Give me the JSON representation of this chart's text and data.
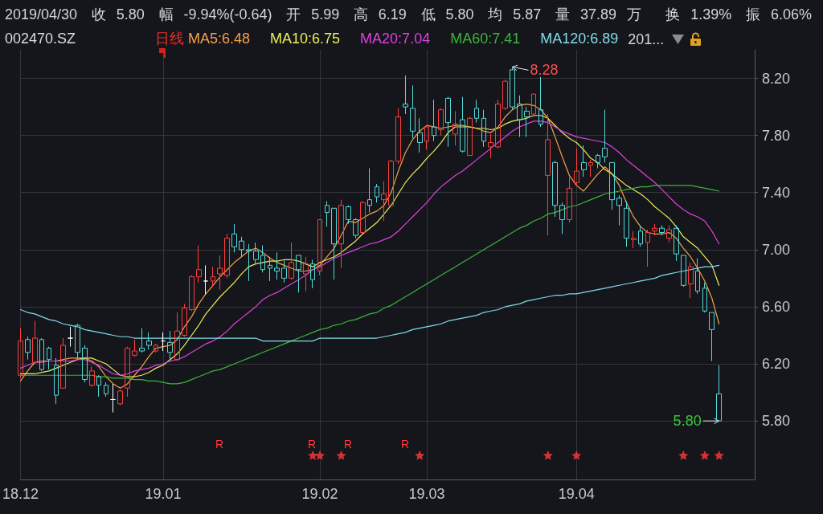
{
  "chart_data": {
    "type": "candlestick",
    "title": "2019/04/30 收5.80 幅-9.94%(-0.64) 开5.99 高6.19 低5.80 均5.87 量37.89万 换1.39% 振6.06%",
    "subtitle": "002470.SZ",
    "legend_title": "日线",
    "categories": [
      "18.12",
      null,
      null,
      null,
      null,
      null,
      null,
      null,
      null,
      null,
      null,
      null,
      null,
      null,
      null,
      null,
      null,
      null,
      null,
      null,
      "19.01",
      null,
      null,
      null,
      null,
      null,
      null,
      null,
      null,
      null,
      null,
      null,
      null,
      null,
      null,
      null,
      null,
      null,
      null,
      null,
      null,
      null,
      "19.02",
      null,
      null,
      null,
      null,
      null,
      null,
      null,
      null,
      null,
      null,
      null,
      null,
      null,
      null,
      "19.03",
      null,
      null,
      null,
      null,
      null,
      null,
      null,
      null,
      null,
      null,
      null,
      null,
      null,
      null,
      null,
      null,
      null,
      null,
      null,
      null,
      "19.04",
      null,
      null,
      null,
      null,
      null,
      null,
      null,
      null,
      null,
      null,
      null,
      null,
      null,
      null,
      null,
      null,
      null,
      null,
      null,
      null
    ],
    "ohlc": [
      [
        6.12,
        6.45,
        6.1,
        6.36
      ],
      [
        6.37,
        6.39,
        6.23,
        6.28
      ],
      [
        6.21,
        6.5,
        6.2,
        6.38
      ],
      [
        6.37,
        6.38,
        6.15,
        6.16
      ],
      [
        6.31,
        6.32,
        6.16,
        6.23
      ],
      [
        6.19,
        6.24,
        5.92,
        5.98
      ],
      [
        6.03,
        6.38,
        6.03,
        6.33
      ],
      [
        6.38,
        6.46,
        6.32,
        6.38
      ],
      [
        6.47,
        6.48,
        6.23,
        6.28
      ],
      [
        6.31,
        6.33,
        6.07,
        6.09
      ],
      [
        6.05,
        6.18,
        6.04,
        6.15
      ],
      [
        6.11,
        6.12,
        5.97,
        6.05
      ],
      [
        6.05,
        6.07,
        5.97,
        5.99
      ],
      [
        5.95,
        6.06,
        5.86,
        5.95
      ],
      [
        5.92,
        6.02,
        5.91,
        6.01
      ],
      [
        6.03,
        6.32,
        5.97,
        6.31
      ],
      [
        6.26,
        6.37,
        6.25,
        6.29
      ],
      [
        6.31,
        6.45,
        6.28,
        6.29
      ],
      [
        6.36,
        6.42,
        6.3,
        6.33
      ],
      [
        6.29,
        6.34,
        6.28,
        6.33
      ],
      [
        6.36,
        6.42,
        6.29,
        6.36
      ],
      [
        6.35,
        6.43,
        6.23,
        6.28
      ],
      [
        6.23,
        6.56,
        6.22,
        6.43
      ],
      [
        6.4,
        6.62,
        6.39,
        6.59
      ],
      [
        6.58,
        6.82,
        6.57,
        6.81
      ],
      [
        6.81,
        7.03,
        6.77,
        6.86
      ],
      [
        6.78,
        6.89,
        6.69,
        6.78
      ],
      [
        6.78,
        6.88,
        6.74,
        6.81
      ],
      [
        6.83,
        6.96,
        6.72,
        6.87
      ],
      [
        6.82,
        7.11,
        6.8,
        7.08
      ],
      [
        7.11,
        7.18,
        6.98,
        7.02
      ],
      [
        7.06,
        7.09,
        6.95,
        7.0
      ],
      [
        7.0,
        7.04,
        6.78,
        6.99
      ],
      [
        6.99,
        7.05,
        6.9,
        6.93
      ],
      [
        6.96,
        7.03,
        6.84,
        6.86
      ],
      [
        6.89,
        6.95,
        6.78,
        6.87
      ],
      [
        6.87,
        6.98,
        6.79,
        6.85
      ],
      [
        6.87,
        6.93,
        6.77,
        6.8
      ],
      [
        6.8,
        7.05,
        6.79,
        6.91
      ],
      [
        6.96,
        6.96,
        6.7,
        6.86
      ],
      [
        6.83,
        6.95,
        6.71,
        6.9
      ],
      [
        6.9,
        6.93,
        6.73,
        6.79
      ],
      [
        6.85,
        7.21,
        6.82,
        7.21
      ],
      [
        7.31,
        7.34,
        7.16,
        7.26
      ],
      [
        7.29,
        7.29,
        6.79,
        7.04
      ],
      [
        7.04,
        7.35,
        6.87,
        7.31
      ],
      [
        7.3,
        7.31,
        7.18,
        7.21
      ],
      [
        7.21,
        7.22,
        7.08,
        7.1
      ],
      [
        7.12,
        7.34,
        7.11,
        7.33
      ],
      [
        7.35,
        7.57,
        7.26,
        7.31
      ],
      [
        7.44,
        7.46,
        7.33,
        7.37
      ],
      [
        7.35,
        7.48,
        7.2,
        7.39
      ],
      [
        7.31,
        7.63,
        7.3,
        7.62
      ],
      [
        7.62,
        7.99,
        7.6,
        7.93
      ],
      [
        8.02,
        8.22,
        7.95,
        8.0
      ],
      [
        7.99,
        8.15,
        7.78,
        7.83
      ],
      [
        7.82,
        7.92,
        7.68,
        7.75
      ],
      [
        7.76,
        7.87,
        7.7,
        7.86
      ],
      [
        7.86,
        8.05,
        7.76,
        7.8
      ],
      [
        7.84,
        7.99,
        7.8,
        7.98
      ],
      [
        8.06,
        8.07,
        7.72,
        7.89
      ],
      [
        7.81,
        7.97,
        7.73,
        7.88
      ],
      [
        7.91,
        8.07,
        7.68,
        7.69
      ],
      [
        7.66,
        7.93,
        7.66,
        7.92
      ],
      [
        7.99,
        8.05,
        7.89,
        7.92
      ],
      [
        7.92,
        7.98,
        7.72,
        7.76
      ],
      [
        7.72,
        7.81,
        7.64,
        7.75
      ],
      [
        7.72,
        8.05,
        7.71,
        8.02
      ],
      [
        7.99,
        8.19,
        7.98,
        8.18
      ],
      [
        8.26,
        8.28,
        7.98,
        8.0
      ],
      [
        8.02,
        8.08,
        7.79,
        7.91
      ],
      [
        7.97,
        8.0,
        7.79,
        7.93
      ],
      [
        7.95,
        8.09,
        7.93,
        8.09
      ],
      [
        7.98,
        8.21,
        7.86,
        7.88
      ],
      [
        7.52,
        7.95,
        7.1,
        7.77
      ],
      [
        7.61,
        7.62,
        7.23,
        7.31
      ],
      [
        7.31,
        7.33,
        7.11,
        7.21
      ],
      [
        7.21,
        7.51,
        7.19,
        7.43
      ],
      [
        7.47,
        7.71,
        7.45,
        7.55
      ],
      [
        7.61,
        7.73,
        7.51,
        7.56
      ],
      [
        7.59,
        7.63,
        7.51,
        7.61
      ],
      [
        7.66,
        7.67,
        7.57,
        7.61
      ],
      [
        7.71,
        7.98,
        7.61,
        7.65
      ],
      [
        7.61,
        7.61,
        7.28,
        7.35
      ],
      [
        7.36,
        7.38,
        7.17,
        7.31
      ],
      [
        7.29,
        7.34,
        7.02,
        7.08
      ],
      [
        7.07,
        7.13,
        7.01,
        7.08
      ],
      [
        7.13,
        7.17,
        7.02,
        7.04
      ],
      [
        7.05,
        7.14,
        6.88,
        7.12
      ],
      [
        7.13,
        7.18,
        7.1,
        7.15
      ],
      [
        7.15,
        7.17,
        7.1,
        7.12
      ],
      [
        7.08,
        7.17,
        7.05,
        7.14
      ],
      [
        7.15,
        7.17,
        6.92,
        6.97
      ],
      [
        6.96,
        6.96,
        6.74,
        6.75
      ],
      [
        6.76,
        6.91,
        6.66,
        6.88
      ],
      [
        6.85,
        6.94,
        6.69,
        6.71
      ],
      [
        6.73,
        6.77,
        6.56,
        6.57
      ],
      [
        6.56,
        6.56,
        6.22,
        6.44
      ],
      [
        5.99,
        6.19,
        5.8,
        5.8
      ]
    ],
    "colors": [
      "#ff3c3c",
      "#54d8d8",
      "#ff3c3c",
      "#54d8d8",
      "#54d8d8",
      "#54d8d8",
      "#ff3c3c",
      "#ffffff",
      "#54d8d8",
      "#54d8d8",
      "#ff3c3c",
      "#54d8d8",
      "#54d8d8",
      "#ffffff",
      "#ff3c3c",
      "#ff3c3c",
      "#ff3c3c",
      "#54d8d8",
      "#54d8d8",
      "#ff3c3c",
      "#ffffff",
      "#54d8d8",
      "#ff3c3c",
      "#ff3c3c",
      "#ff3c3c",
      "#ff3c3c",
      "#ffffff",
      "#ff3c3c",
      "#ff3c3c",
      "#ff3c3c",
      "#54d8d8",
      "#54d8d8",
      "#54d8d8",
      "#54d8d8",
      "#54d8d8",
      "#54d8d8",
      "#54d8d8",
      "#54d8d8",
      "#ff3c3c",
      "#54d8d8",
      "#ff3c3c",
      "#54d8d8",
      "#ff3c3c",
      "#54d8d8",
      "#54d8d8",
      "#ff3c3c",
      "#54d8d8",
      "#54d8d8",
      "#ff3c3c",
      "#54d8d8",
      "#54d8d8",
      "#ff3c3c",
      "#ff3c3c",
      "#ff3c3c",
      "#54d8d8",
      "#54d8d8",
      "#54d8d8",
      "#ff3c3c",
      "#54d8d8",
      "#ff3c3c",
      "#54d8d8",
      "#ff3c3c",
      "#54d8d8",
      "#ff3c3c",
      "#54d8d8",
      "#54d8d8",
      "#ff3c3c",
      "#ff3c3c",
      "#ff3c3c",
      "#54d8d8",
      "#54d8d8",
      "#54d8d8",
      "#ff3c3c",
      "#54d8d8",
      "#ff3c3c",
      "#54d8d8",
      "#54d8d8",
      "#ff3c3c",
      "#ff3c3c",
      "#54d8d8",
      "#ff3c3c",
      "#54d8d8",
      "#54d8d8",
      "#54d8d8",
      "#54d8d8",
      "#54d8d8",
      "#ff3c3c",
      "#54d8d8",
      "#ff3c3c",
      "#ff3c3c",
      "#54d8d8",
      "#ff3c3c",
      "#54d8d8",
      "#54d8d8",
      "#ff3c3c",
      "#54d8d8",
      "#54d8d8",
      "#54d8d8",
      "#54d8d8"
    ],
    "value_labels": [
      null,
      null,
      null,
      null,
      null,
      null,
      null,
      null,
      null,
      null,
      null,
      null,
      null,
      null,
      null,
      null,
      null,
      null,
      null,
      null,
      null,
      null,
      null,
      null,
      null,
      null,
      null,
      null,
      null,
      null,
      null,
      null,
      null,
      null,
      null,
      null,
      null,
      null,
      null,
      null,
      null,
      null,
      null,
      null,
      null,
      null,
      null,
      null,
      null,
      null,
      null,
      null,
      null,
      null,
      null,
      null,
      null,
      null,
      null,
      null,
      null,
      null,
      null,
      null,
      null,
      null,
      null,
      null,
      null,
      "8.28",
      null,
      null,
      null,
      null,
      null,
      null,
      null,
      null,
      null,
      null,
      null,
      null,
      null,
      null,
      null,
      null,
      null,
      null,
      null,
      null,
      null,
      null,
      null,
      null,
      null,
      null,
      null,
      null,
      "5.80"
    ],
    "series": [
      {
        "type": "line",
        "name": "MA5:6.48",
        "color": "#f5a04a",
        "values": [
          6.08,
          6.15,
          6.21,
          6.22,
          6.22,
          6.22,
          6.23,
          6.24,
          6.24,
          6.24,
          6.22,
          6.18,
          6.11,
          6.06,
          6.03,
          6.06,
          6.12,
          6.18,
          6.25,
          6.31,
          6.32,
          6.33,
          6.37,
          6.46,
          6.53,
          6.62,
          6.69,
          6.75,
          6.81,
          6.86,
          6.91,
          6.95,
          6.99,
          7.01,
          6.98,
          6.94,
          6.91,
          6.89,
          6.87,
          6.85,
          6.85,
          6.86,
          6.89,
          6.95,
          7.01,
          7.1,
          7.2,
          7.19,
          7.22,
          7.25,
          7.27,
          7.31,
          7.4,
          7.55,
          7.68,
          7.77,
          7.83,
          7.87,
          7.86,
          7.85,
          7.86,
          7.87,
          7.87,
          7.86,
          7.85,
          7.83,
          7.82,
          7.86,
          7.93,
          7.98,
          8.01,
          8.02,
          8.01,
          7.98,
          7.92,
          7.79,
          7.65,
          7.52,
          7.45,
          7.41,
          7.47,
          7.53,
          7.58,
          7.53,
          7.45,
          7.33,
          7.23,
          7.16,
          7.12,
          7.11,
          7.11,
          7.12,
          7.08,
          7.01,
          6.95,
          6.87,
          6.78,
          6.66,
          6.48
        ]
      },
      {
        "type": "line",
        "name": "MA10:6.75",
        "color": "#ecec5a",
        "values": [
          6.13,
          6.13,
          6.13,
          6.14,
          6.15,
          6.17,
          6.19,
          6.21,
          6.23,
          6.24,
          6.24,
          6.22,
          6.2,
          6.16,
          6.12,
          6.11,
          6.11,
          6.12,
          6.14,
          6.17,
          6.19,
          6.23,
          6.27,
          6.33,
          6.4,
          6.47,
          6.55,
          6.61,
          6.67,
          6.72,
          6.77,
          6.83,
          6.88,
          6.9,
          6.91,
          6.92,
          6.92,
          6.93,
          6.93,
          6.92,
          6.9,
          6.88,
          6.91,
          6.93,
          6.95,
          6.98,
          7.02,
          7.06,
          7.11,
          7.15,
          7.19,
          7.25,
          7.31,
          7.39,
          7.47,
          7.53,
          7.58,
          7.64,
          7.69,
          7.75,
          7.82,
          7.86,
          7.86,
          7.86,
          7.85,
          7.85,
          7.84,
          7.85,
          7.88,
          7.9,
          7.91,
          7.92,
          7.94,
          7.94,
          7.92,
          7.87,
          7.82,
          7.78,
          7.75,
          7.7,
          7.64,
          7.61,
          7.56,
          7.53,
          7.49,
          7.45,
          7.42,
          7.39,
          7.35,
          7.3,
          7.26,
          7.22,
          7.16,
          7.09,
          7.05,
          7.01,
          6.95,
          6.89,
          6.75
        ]
      },
      {
        "type": "line",
        "name": "MA20:7.04",
        "color": "#e040e0",
        "values": [
          6.17,
          6.19,
          6.21,
          6.21,
          6.22,
          6.22,
          6.22,
          6.22,
          6.23,
          6.23,
          6.21,
          6.19,
          6.16,
          6.13,
          6.12,
          6.13,
          6.15,
          6.16,
          6.17,
          6.19,
          6.2,
          6.22,
          6.23,
          6.25,
          6.28,
          6.31,
          6.34,
          6.36,
          6.39,
          6.43,
          6.48,
          6.52,
          6.56,
          6.6,
          6.65,
          6.68,
          6.7,
          6.73,
          6.76,
          6.79,
          6.82,
          6.86,
          6.88,
          6.91,
          6.94,
          6.96,
          6.98,
          7.0,
          7.02,
          7.04,
          7.05,
          7.07,
          7.09,
          7.13,
          7.18,
          7.23,
          7.28,
          7.33,
          7.39,
          7.44,
          7.48,
          7.52,
          7.55,
          7.59,
          7.63,
          7.67,
          7.71,
          7.75,
          7.79,
          7.83,
          7.86,
          7.88,
          7.9,
          7.9,
          7.89,
          7.86,
          7.83,
          7.81,
          7.79,
          7.78,
          7.77,
          7.76,
          7.75,
          7.72,
          7.68,
          7.63,
          7.59,
          7.55,
          7.51,
          7.47,
          7.42,
          7.37,
          7.32,
          7.28,
          7.25,
          7.23,
          7.2,
          7.13,
          7.04
        ]
      },
      {
        "type": "line",
        "name": "MA60:7.41",
        "color": "#3cb43c",
        "values": [
          6.12,
          6.12,
          6.12,
          6.12,
          6.12,
          6.12,
          6.12,
          6.12,
          6.12,
          6.12,
          6.12,
          6.11,
          6.11,
          6.1,
          6.1,
          6.1,
          6.09,
          6.09,
          6.08,
          6.08,
          6.07,
          6.06,
          6.06,
          6.07,
          6.09,
          6.11,
          6.13,
          6.15,
          6.16,
          6.18,
          6.2,
          6.22,
          6.24,
          6.26,
          6.28,
          6.3,
          6.32,
          6.34,
          6.36,
          6.38,
          6.4,
          6.42,
          6.44,
          6.45,
          6.47,
          6.48,
          6.5,
          6.51,
          6.53,
          6.55,
          6.56,
          6.59,
          6.61,
          6.64,
          6.67,
          6.7,
          6.73,
          6.76,
          6.79,
          6.82,
          6.85,
          6.88,
          6.91,
          6.94,
          6.97,
          7.0,
          7.03,
          7.06,
          7.09,
          7.12,
          7.15,
          7.17,
          7.2,
          7.22,
          7.25,
          7.26,
          7.28,
          7.3,
          7.31,
          7.33,
          7.35,
          7.37,
          7.39,
          7.4,
          7.41,
          7.42,
          7.43,
          7.44,
          7.44,
          7.45,
          7.45,
          7.45,
          7.45,
          7.45,
          7.45,
          7.44,
          7.43,
          7.42,
          7.41
        ]
      },
      {
        "type": "line",
        "name": "MA120:6.89",
        "color": "#80dcea",
        "values": [
          6.58,
          6.56,
          6.55,
          6.53,
          6.51,
          6.5,
          6.48,
          6.47,
          6.46,
          6.44,
          6.43,
          6.42,
          6.41,
          6.4,
          6.39,
          6.39,
          6.38,
          6.38,
          6.38,
          6.38,
          6.38,
          6.38,
          6.38,
          6.38,
          6.38,
          6.38,
          6.38,
          6.38,
          6.38,
          6.38,
          6.38,
          6.38,
          6.38,
          6.38,
          6.36,
          6.36,
          6.36,
          6.36,
          6.36,
          6.36,
          6.36,
          6.36,
          6.38,
          6.38,
          6.38,
          6.38,
          6.38,
          6.38,
          6.38,
          6.38,
          6.38,
          6.39,
          6.4,
          6.41,
          6.42,
          6.44,
          6.45,
          6.46,
          6.47,
          6.48,
          6.5,
          6.51,
          6.52,
          6.53,
          6.54,
          6.56,
          6.57,
          6.58,
          6.6,
          6.61,
          6.62,
          6.64,
          6.65,
          6.66,
          6.67,
          6.68,
          6.68,
          6.69,
          6.69,
          6.7,
          6.71,
          6.72,
          6.73,
          6.74,
          6.75,
          6.76,
          6.77,
          6.78,
          6.79,
          6.8,
          6.82,
          6.83,
          6.84,
          6.85,
          6.86,
          6.87,
          6.88,
          6.88,
          6.89
        ]
      },
      {
        "type": "scatter",
        "color": "#ff3a3a",
        "marker": "star",
        "values": [
          null,
          null,
          null,
          null,
          null,
          null,
          null,
          null,
          null,
          null,
          null,
          null,
          null,
          null,
          null,
          null,
          null,
          null,
          null,
          null,
          null,
          null,
          null,
          null,
          null,
          null,
          null,
          null,
          null,
          null,
          null,
          null,
          null,
          null,
          null,
          null,
          null,
          null,
          null,
          null,
          null,
          5.56,
          5.56,
          null,
          null,
          5.56,
          null,
          null,
          null,
          null,
          null,
          null,
          null,
          null,
          null,
          null,
          5.56,
          null,
          null,
          null,
          null,
          null,
          null,
          null,
          null,
          null,
          null,
          null,
          null,
          null,
          null,
          null,
          null,
          null,
          5.56,
          null,
          null,
          null,
          5.56,
          null,
          null,
          null,
          null,
          null,
          null,
          null,
          null,
          null,
          null,
          null,
          null,
          null,
          null,
          5.56,
          null,
          null,
          5.56,
          null,
          5.56
        ]
      }
    ],
    "ylim": [
      5.39,
      8.4
    ],
    "yticks": [
      {
        "value": 5.8,
        "label": "5.80"
      },
      {
        "value": 6.2,
        "label": "6.20"
      },
      {
        "value": 6.6,
        "label": "6.60"
      },
      {
        "value": 7,
        "label": "7.00"
      },
      {
        "value": 7.4,
        "label": "7.40"
      },
      {
        "value": 7.8,
        "label": "7.80"
      },
      {
        "value": 8.2,
        "label": "8.20"
      }
    ],
    "grid": true,
    "legend": "top left",
    "marker": "none",
    "annotations": [
      "201...",
      "R",
      "R",
      "R",
      "R"
    ]
  }
}
